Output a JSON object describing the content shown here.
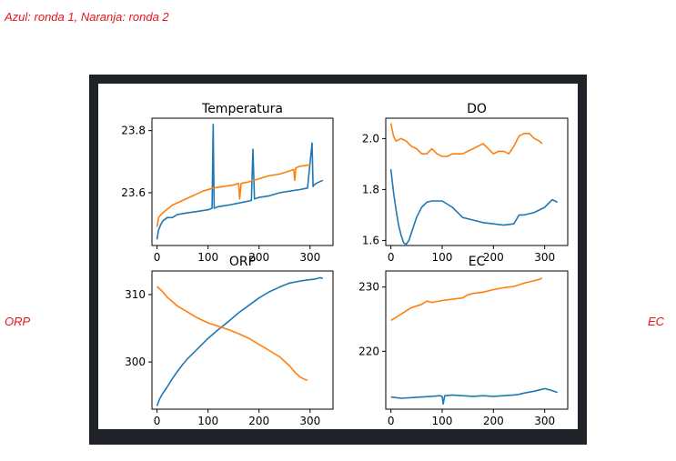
{
  "caption": "Azul: ronda 1, Naranja: ronda 2",
  "side_labels": {
    "left": "ORP",
    "right": "EC"
  },
  "colors": {
    "ronda_1": "#1f77b4",
    "ronda_2": "#ff7f0e",
    "annotation": "#e8141a",
    "frame": "#1f2328"
  },
  "chart_data": [
    {
      "type": "line",
      "title": "Temperatura",
      "xlim": [
        -10,
        345
      ],
      "ylim": [
        23.43,
        23.84
      ],
      "xticks": [
        0,
        100,
        200,
        300
      ],
      "yticks": [
        23.6,
        23.8
      ],
      "xtick_labels": [
        "0",
        "100",
        "200",
        "300"
      ],
      "ytick_labels": [
        "23.6",
        "23.8"
      ],
      "series": [
        {
          "color": "#1f77b4",
          "x": [
            0,
            3,
            8,
            12,
            20,
            30,
            40,
            60,
            80,
            100,
            108,
            110,
            112,
            120,
            140,
            170,
            185,
            188,
            191,
            200,
            220,
            240,
            260,
            280,
            295,
            304,
            306,
            308,
            312,
            325
          ],
          "y": [
            23.45,
            23.48,
            23.5,
            23.51,
            23.52,
            23.52,
            23.53,
            23.535,
            23.54,
            23.545,
            23.55,
            23.82,
            23.55,
            23.555,
            23.56,
            23.57,
            23.575,
            23.74,
            23.58,
            23.585,
            23.59,
            23.6,
            23.605,
            23.61,
            23.615,
            23.76,
            23.62,
            23.625,
            23.63,
            23.64
          ]
        },
        {
          "color": "#ff7f0e",
          "x": [
            0,
            3,
            8,
            15,
            30,
            50,
            70,
            90,
            110,
            130,
            150,
            160,
            162,
            165,
            180,
            200,
            220,
            240,
            260,
            268,
            270,
            272,
            280,
            300
          ],
          "y": [
            23.49,
            23.52,
            23.53,
            23.54,
            23.56,
            23.575,
            23.59,
            23.605,
            23.615,
            23.62,
            23.625,
            23.63,
            23.58,
            23.63,
            23.635,
            23.645,
            23.655,
            23.66,
            23.67,
            23.675,
            23.64,
            23.68,
            23.685,
            23.69
          ]
        }
      ]
    },
    {
      "type": "line",
      "title": "DO",
      "xlim": [
        -10,
        345
      ],
      "ylim": [
        1.58,
        2.08
      ],
      "xticks": [
        0,
        100,
        200,
        300
      ],
      "yticks": [
        1.6,
        1.8,
        2.0
      ],
      "xtick_labels": [
        "0",
        "100",
        "200",
        "300"
      ],
      "ytick_labels": [
        "1.6",
        "1.8",
        "2.0"
      ],
      "series": [
        {
          "color": "#1f77b4",
          "x": [
            0,
            5,
            10,
            15,
            20,
            25,
            30,
            35,
            40,
            50,
            60,
            70,
            80,
            90,
            100,
            120,
            130,
            140,
            160,
            180,
            200,
            220,
            240,
            250,
            260,
            280,
            300,
            315,
            320,
            325
          ],
          "y": [
            1.88,
            1.79,
            1.72,
            1.66,
            1.62,
            1.59,
            1.585,
            1.6,
            1.63,
            1.69,
            1.73,
            1.75,
            1.755,
            1.755,
            1.755,
            1.73,
            1.71,
            1.69,
            1.68,
            1.67,
            1.665,
            1.66,
            1.665,
            1.7,
            1.7,
            1.71,
            1.73,
            1.76,
            1.755,
            1.75
          ]
        },
        {
          "color": "#ff7f0e",
          "x": [
            0,
            5,
            10,
            20,
            30,
            40,
            50,
            60,
            70,
            80,
            90,
            100,
            110,
            120,
            130,
            140,
            150,
            160,
            170,
            180,
            190,
            200,
            210,
            220,
            230,
            240,
            250,
            260,
            270,
            280,
            290,
            295
          ],
          "y": [
            2.06,
            2.01,
            1.99,
            2.0,
            1.99,
            1.97,
            1.96,
            1.94,
            1.94,
            1.96,
            1.94,
            1.93,
            1.93,
            1.94,
            1.94,
            1.94,
            1.95,
            1.96,
            1.97,
            1.98,
            1.96,
            1.94,
            1.95,
            1.95,
            1.94,
            1.97,
            2.01,
            2.02,
            2.02,
            2.0,
            1.99,
            1.98
          ]
        }
      ]
    },
    {
      "type": "line",
      "title": "ORP",
      "xlim": [
        -10,
        345
      ],
      "ylim": [
        293,
        313.5
      ],
      "xticks": [
        0,
        100,
        200,
        300
      ],
      "yticks": [
        300,
        310
      ],
      "xtick_labels": [
        "0",
        "100",
        "200",
        "300"
      ],
      "ytick_labels": [
        "300",
        "310"
      ],
      "series": [
        {
          "color": "#1f77b4",
          "x": [
            0,
            5,
            10,
            20,
            30,
            40,
            50,
            60,
            80,
            100,
            120,
            140,
            160,
            180,
            200,
            220,
            240,
            260,
            280,
            300,
            310,
            320,
            325
          ],
          "y": [
            293.5,
            294.5,
            295.2,
            296.3,
            297.5,
            298.6,
            299.6,
            300.5,
            302.0,
            303.5,
            304.8,
            306.0,
            307.3,
            308.4,
            309.5,
            310.4,
            311.1,
            311.7,
            312.0,
            312.2,
            312.3,
            312.5,
            312.4
          ]
        },
        {
          "color": "#ff7f0e",
          "x": [
            0,
            10,
            20,
            40,
            60,
            80,
            100,
            120,
            140,
            160,
            180,
            200,
            220,
            240,
            260,
            270,
            280,
            290,
            295
          ],
          "y": [
            311.2,
            310.5,
            309.6,
            308.3,
            307.4,
            306.5,
            305.8,
            305.3,
            304.8,
            304.2,
            303.5,
            302.6,
            301.7,
            300.8,
            299.4,
            298.5,
            297.8,
            297.4,
            297.3
          ]
        }
      ]
    },
    {
      "type": "line",
      "title": "EC",
      "xlim": [
        -10,
        345
      ],
      "ylim": [
        211,
        232.5
      ],
      "xticks": [
        0,
        100,
        200,
        300
      ],
      "yticks": [
        220,
        230
      ],
      "xtick_labels": [
        "0",
        "100",
        "200",
        "300"
      ],
      "ytick_labels": [
        "220",
        "230"
      ],
      "series": [
        {
          "color": "#1f77b4",
          "x": [
            0,
            10,
            20,
            40,
            60,
            80,
            95,
            100,
            102,
            105,
            120,
            140,
            160,
            180,
            200,
            220,
            240,
            250,
            260,
            280,
            290,
            300,
            310,
            325
          ],
          "y": [
            212.9,
            212.8,
            212.7,
            212.8,
            212.9,
            213.0,
            213.1,
            213.0,
            211.8,
            213.1,
            213.2,
            213.1,
            213.0,
            213.1,
            213.0,
            213.1,
            213.2,
            213.3,
            213.5,
            213.8,
            214.0,
            214.2,
            214.0,
            213.6
          ]
        },
        {
          "color": "#ff7f0e",
          "x": [
            0,
            10,
            20,
            30,
            40,
            60,
            70,
            80,
            100,
            120,
            140,
            150,
            160,
            180,
            200,
            220,
            240,
            260,
            280,
            290,
            295
          ],
          "y": [
            224.8,
            225.3,
            225.8,
            226.3,
            226.8,
            227.3,
            227.8,
            227.6,
            227.9,
            228.1,
            228.3,
            228.8,
            229.0,
            229.2,
            229.6,
            229.9,
            230.1,
            230.6,
            231.0,
            231.2,
            231.4
          ]
        }
      ]
    }
  ]
}
